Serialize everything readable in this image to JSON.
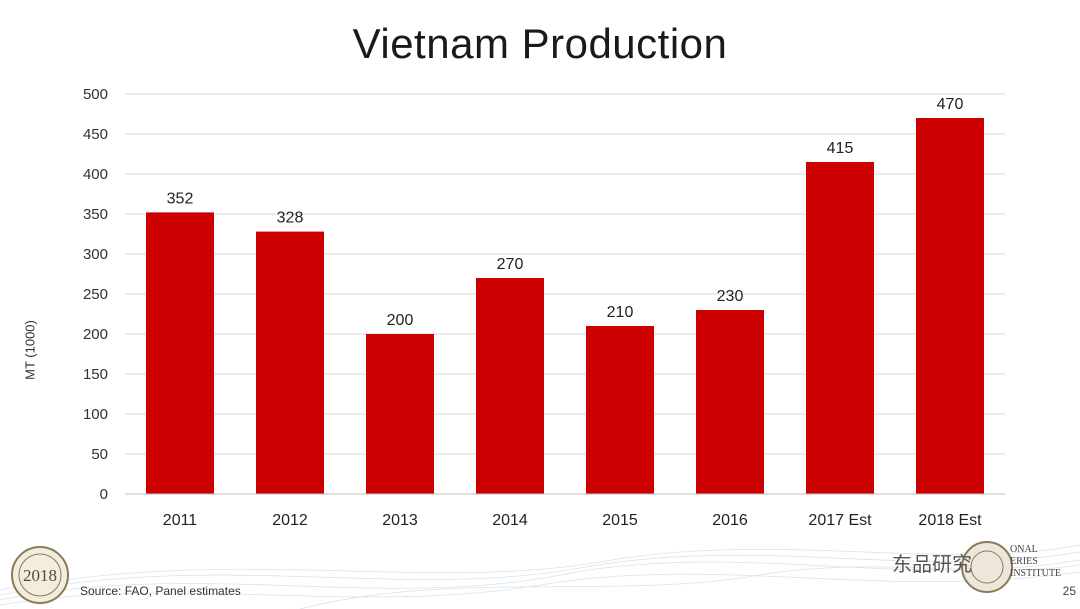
{
  "slide": {
    "title": "Vietnam Production",
    "source": "Source: FAO, Panel estimates",
    "page_number": "25",
    "watermark": "东品研究",
    "seal_left_text": "2018",
    "seal_right_text": "ONAL\nERIES\nINSTITUTE"
  },
  "chart_data": {
    "type": "bar",
    "title": "",
    "xlabel": "",
    "ylabel": "MT (1000)",
    "ylim": [
      0,
      500
    ],
    "yticks": [
      0,
      50,
      100,
      150,
      200,
      250,
      300,
      350,
      400,
      450,
      500
    ],
    "grid": true,
    "categories": [
      "2011",
      "2012",
      "2013",
      "2014",
      "2015",
      "2016",
      "2017 Est",
      "2018 Est"
    ],
    "values": [
      352,
      328,
      200,
      270,
      210,
      230,
      415,
      470
    ],
    "data_labels": [
      "352",
      "328",
      "200",
      "270",
      "210",
      "230",
      "415",
      "470"
    ],
    "bar_color": "#cc0000",
    "grid_color": "#d9d9d9"
  }
}
